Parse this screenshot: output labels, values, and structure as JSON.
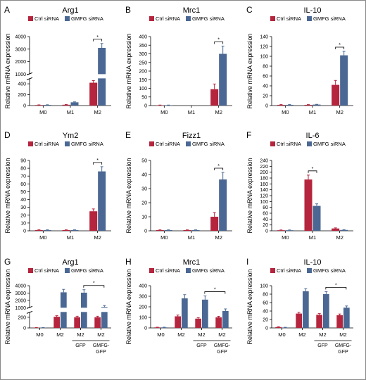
{
  "legend": {
    "ctrl": "Ctrl siRNA",
    "gmfg": "GMFG siRNA"
  },
  "colors": {
    "ctrl": "#b5253d",
    "gmfg": "#4a6893"
  },
  "ylabel": "Relative mRNA expression",
  "chart_data": [
    {
      "type": "bar",
      "panel": "A",
      "title": "Arg1",
      "categories": [
        "M0",
        "M1",
        "M2"
      ],
      "break": {
        "upper": [
          1000,
          4000
        ],
        "lower": [
          0,
          500
        ],
        "upper_ticks": [
          1000,
          2000,
          3000,
          4000
        ],
        "lower_ticks": [
          0,
          200,
          400
        ]
      },
      "series": [
        {
          "name": "Ctrl siRNA",
          "values": [
            10,
            15,
            420
          ],
          "errors": [
            3,
            4,
            40
          ]
        },
        {
          "name": "GMFG siRNA",
          "values": [
            12,
            60,
            3100
          ],
          "errors": [
            3,
            8,
            350
          ]
        }
      ],
      "sig": [
        {
          "cat": 2,
          "label": "*"
        }
      ]
    },
    {
      "type": "bar",
      "panel": "B",
      "title": "Mrc1",
      "categories": [
        "M0",
        "M1",
        "M2"
      ],
      "ylim": [
        0,
        400
      ],
      "yticks": [
        0,
        50,
        100,
        150,
        200,
        250,
        300,
        350,
        400
      ],
      "series": [
        {
          "name": "Ctrl siRNA",
          "values": [
            2,
            0,
            95
          ],
          "errors": [
            1,
            0,
            30
          ]
        },
        {
          "name": "GMFG siRNA",
          "values": [
            2,
            0,
            300
          ],
          "errors": [
            1,
            0,
            45
          ]
        }
      ],
      "sig": [
        {
          "cat": 2,
          "label": "*"
        }
      ]
    },
    {
      "type": "bar",
      "panel": "C",
      "title": "IL-10",
      "categories": [
        "M0",
        "M1",
        "M2"
      ],
      "ylim": [
        0,
        140
      ],
      "yticks": [
        0,
        20,
        40,
        60,
        80,
        100,
        120,
        140
      ],
      "series": [
        {
          "name": "Ctrl siRNA",
          "values": [
            1.5,
            1.5,
            42
          ],
          "errors": [
            0.5,
            0.5,
            9
          ]
        },
        {
          "name": "GMFG siRNA",
          "values": [
            1.5,
            2,
            102
          ],
          "errors": [
            0.5,
            0.5,
            8
          ]
        }
      ],
      "sig": [
        {
          "cat": 2,
          "label": "*"
        }
      ]
    },
    {
      "type": "bar",
      "panel": "D",
      "title": "Ym2",
      "categories": [
        "M0",
        "M1",
        "M2"
      ],
      "ylim": [
        0,
        90
      ],
      "yticks": [
        0,
        10,
        20,
        30,
        40,
        50,
        60,
        70,
        80,
        90
      ],
      "series": [
        {
          "name": "Ctrl siRNA",
          "values": [
            1,
            1,
            25
          ],
          "errors": [
            0.3,
            0.3,
            3
          ]
        },
        {
          "name": "GMFG siRNA",
          "values": [
            1,
            1,
            76
          ],
          "errors": [
            0.3,
            0.3,
            6
          ]
        }
      ],
      "sig": [
        {
          "cat": 2,
          "label": "*"
        }
      ]
    },
    {
      "type": "bar",
      "panel": "E",
      "title": "Fizz1",
      "categories": [
        "M0",
        "M1",
        "M2"
      ],
      "ylim": [
        0,
        50
      ],
      "yticks": [
        0,
        10,
        20,
        30,
        40,
        50
      ],
      "series": [
        {
          "name": "Ctrl siRNA",
          "values": [
            0.5,
            0.5,
            10
          ],
          "errors": [
            0.2,
            0.2,
            3
          ]
        },
        {
          "name": "GMFG siRNA",
          "values": [
            0.5,
            0.5,
            36.5
          ],
          "errors": [
            0.2,
            0.2,
            5
          ]
        }
      ],
      "sig": [
        {
          "cat": 2,
          "label": "*"
        }
      ]
    },
    {
      "type": "bar",
      "panel": "F",
      "title": "IL-6",
      "categories": [
        "M0",
        "M1",
        "M2"
      ],
      "ylim": [
        0,
        240
      ],
      "yticks": [
        0,
        20,
        40,
        60,
        80,
        100,
        120,
        140,
        160,
        180,
        200,
        220,
        240
      ],
      "series": [
        {
          "name": "Ctrl siRNA",
          "values": [
            2,
            175,
            8
          ],
          "errors": [
            1,
            15,
            2
          ]
        },
        {
          "name": "GMFG siRNA",
          "values": [
            2,
            85,
            3
          ],
          "errors": [
            1,
            7,
            1
          ]
        }
      ],
      "sig": [
        {
          "cat": 1,
          "label": "*"
        }
      ]
    },
    {
      "type": "bar",
      "panel": "G",
      "title": "Arg1",
      "categories": [
        "M0",
        "M2",
        "M2",
        "M2"
      ],
      "groups": [
        {
          "label": "GFP",
          "from": 2,
          "to": 2
        },
        {
          "label": "GMFG-\nGFP",
          "from": 3,
          "to": 3
        }
      ],
      "break": {
        "upper": [
          1000,
          4000
        ],
        "lower": [
          0,
          300
        ],
        "upper_ticks": [
          1000,
          2000,
          3000,
          4000
        ],
        "lower_ticks": [
          0,
          200
        ]
      },
      "series": [
        {
          "name": "Ctrl siRNA",
          "values": [
            5,
            210,
            200,
            200
          ],
          "errors": [
            2,
            20,
            20,
            20
          ]
        },
        {
          "name": "GMFG siRNA",
          "values": [
            5,
            3100,
            3050,
            1100
          ],
          "errors": [
            2,
            400,
            400,
            200
          ]
        }
      ],
      "sig": [
        {
          "from": 2,
          "to": 3,
          "label": "*"
        }
      ]
    },
    {
      "type": "bar",
      "panel": "H",
      "title": "Mrc1",
      "categories": [
        "M0",
        "M2",
        "M2",
        "M2"
      ],
      "groups": [
        {
          "label": "GFP",
          "from": 2,
          "to": 2
        },
        {
          "label": "GMFG-\nGFP",
          "from": 3,
          "to": 3
        }
      ],
      "ylim": [
        0,
        400
      ],
      "yticks": [
        0,
        100,
        200,
        300,
        400
      ],
      "series": [
        {
          "name": "Ctrl siRNA",
          "values": [
            5,
            110,
            88,
            100
          ],
          "errors": [
            2,
            12,
            8,
            10
          ]
        },
        {
          "name": "GMFG siRNA",
          "values": [
            5,
            280,
            268,
            160
          ],
          "errors": [
            2,
            35,
            35,
            20
          ]
        }
      ],
      "sig": [
        {
          "from": 2,
          "to": 3,
          "label": "*"
        }
      ]
    },
    {
      "type": "bar",
      "panel": "I",
      "title": "IL-10",
      "categories": [
        "M0",
        "M2",
        "M2",
        "M2"
      ],
      "groups": [
        {
          "label": "GFP",
          "from": 2,
          "to": 2
        },
        {
          "label": "GMFG-\nGFP",
          "from": 3,
          "to": 3
        }
      ],
      "ylim": [
        0,
        100
      ],
      "yticks": [
        0,
        20,
        40,
        60,
        80,
        100
      ],
      "series": [
        {
          "name": "Ctrl siRNA",
          "values": [
            2,
            34,
            31,
            30
          ],
          "errors": [
            1,
            3,
            3,
            3
          ]
        },
        {
          "name": "GMFG siRNA",
          "values": [
            1,
            87,
            80,
            48
          ],
          "errors": [
            0.5,
            6,
            6,
            4
          ]
        }
      ],
      "sig": [
        {
          "from": 2,
          "to": 3,
          "label": "*"
        }
      ]
    }
  ]
}
